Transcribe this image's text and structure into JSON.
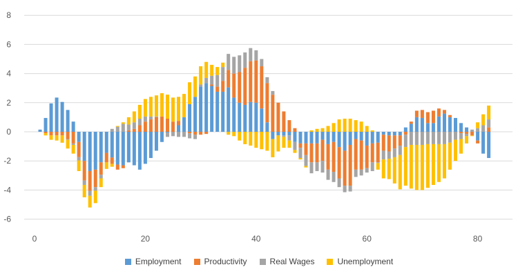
{
  "chart_data": {
    "type": "bar",
    "stacked": true,
    "title": "",
    "xlabel": "",
    "ylabel": "",
    "xlim": [
      0,
      82
    ],
    "ylim": [
      -7,
      8
    ],
    "x_ticks": [
      0,
      20,
      40,
      60,
      80
    ],
    "y_ticks": [
      -6,
      -4,
      -2,
      0,
      2,
      4,
      6,
      8
    ],
    "grid": true,
    "legend_position": "bottom",
    "x": [
      1,
      2,
      3,
      4,
      5,
      6,
      7,
      8,
      9,
      10,
      11,
      12,
      13,
      14,
      15,
      16,
      17,
      18,
      19,
      20,
      21,
      22,
      23,
      24,
      25,
      26,
      27,
      28,
      29,
      30,
      31,
      32,
      33,
      34,
      35,
      36,
      37,
      38,
      39,
      40,
      41,
      42,
      43,
      44,
      45,
      46,
      47,
      48,
      49,
      50,
      51,
      52,
      53,
      54,
      55,
      56,
      57,
      58,
      59,
      60,
      61,
      62,
      63,
      64,
      65,
      66,
      67,
      68,
      69,
      70,
      71,
      72,
      73,
      74,
      75,
      76,
      77,
      78,
      79,
      80,
      81,
      82
    ],
    "series": [
      {
        "name": "Employment",
        "color": "#5b9bd5",
        "values": [
          0.15,
          0.95,
          1.95,
          2.35,
          2.05,
          1.5,
          0.7,
          -0.7,
          -2,
          -2.7,
          -2.6,
          -2.1,
          -1.45,
          -1.77,
          -2.25,
          -2.3,
          -2.1,
          -2.3,
          -2.6,
          -2.2,
          -1.8,
          -1.3,
          -0.7,
          -0.05,
          0,
          0.45,
          1.0,
          1.9,
          2.4,
          3.1,
          3.35,
          3.15,
          2.75,
          2.75,
          3.05,
          2.35,
          2.0,
          1.85,
          2.05,
          2.0,
          1.6,
          0.65,
          -0.5,
          -0.25,
          -0.25,
          -0.25,
          -0.7,
          -0.8,
          -0.8,
          -0.8,
          -0.8,
          -0.55,
          -0.85,
          -0.7,
          -1.05,
          -1.3,
          -0.9,
          -0.5,
          -0.6,
          -0.95,
          -0.8,
          -0.75,
          -0.2,
          -0.25,
          -0.25,
          -0.25,
          0.3,
          0.55,
          1.0,
          0.95,
          0.6,
          0.6,
          1.05,
          1.25,
          1.0,
          0.95,
          0.6,
          0.3,
          0,
          -0.6,
          -1.5,
          -1.8
        ]
      },
      {
        "name": "Productivity",
        "color": "#ed7d31",
        "values": [
          0,
          -0.1,
          -0.25,
          -0.25,
          -0.25,
          -0.5,
          -0.8,
          -1.04,
          -1.35,
          -1.35,
          -1.2,
          -0.85,
          -0.65,
          -0.43,
          -0.35,
          -0.2,
          0.1,
          0.2,
          0.45,
          0.7,
          0.85,
          1.0,
          1.05,
          0.9,
          0.7,
          0.3,
          0,
          -0.1,
          -0.2,
          -0.2,
          -0.15,
          0.1,
          0.35,
          0.75,
          1.2,
          1.65,
          2.1,
          2.55,
          2.8,
          2.9,
          2.9,
          2.7,
          2.55,
          2.0,
          1.4,
          0.8,
          0.25,
          -0.3,
          -0.8,
          -1.3,
          -1.3,
          -1.45,
          -1.75,
          -2.05,
          -2.15,
          -2.4,
          -2.8,
          -2.1,
          -2.0,
          -1.55,
          -1.3,
          -1.35,
          -1.1,
          -1.1,
          -0.9,
          -0.7,
          -0.2,
          0.15,
          0.45,
          0.55,
          0.75,
          0.85,
          0.55,
          0.25,
          0.15,
          0,
          -0.1,
          -0.15,
          -0.25,
          -0.2,
          0,
          0.3
        ]
      },
      {
        "name": "Real Wages",
        "color": "#a5a5a5",
        "values": [
          0,
          0,
          0,
          0,
          0,
          -0.05,
          -0.1,
          -0.23,
          -0.3,
          -0.35,
          -0.25,
          -0.25,
          0,
          0.2,
          0.35,
          0.55,
          0.4,
          0.45,
          0.45,
          0.35,
          0.2,
          0.05,
          0,
          -0.3,
          -0.3,
          -0.35,
          -0.35,
          -0.35,
          -0.3,
          0.15,
          0.35,
          0.6,
          0.8,
          0.95,
          1.1,
          1.15,
          1.15,
          1.05,
          0.9,
          0.7,
          0.5,
          0.4,
          0.25,
          0,
          -0.1,
          -0.35,
          -0.55,
          -0.7,
          -0.75,
          -0.75,
          -0.6,
          -0.8,
          -0.7,
          -0.7,
          -0.6,
          -0.45,
          -0.4,
          -0.5,
          -0.4,
          -0.3,
          -0.6,
          -0.05,
          -0.6,
          -0.5,
          -0.6,
          -0.65,
          -0.85,
          -0.9,
          -0.9,
          -0.9,
          -0.85,
          -0.85,
          -0.85,
          -0.85,
          -0.75,
          -0.55,
          -0.4,
          -0.15,
          0.15,
          0.25,
          0.45,
          0.55
        ]
      },
      {
        "name": "Unemployment",
        "color": "#ffc000",
        "values": [
          0,
          -0.15,
          -0.3,
          -0.35,
          -0.5,
          -0.6,
          -0.6,
          -0.73,
          -0.85,
          -0.8,
          -0.85,
          -0.6,
          -0.45,
          -0.2,
          0.05,
          0.1,
          0.5,
          0.75,
          0.95,
          1.2,
          1.35,
          1.45,
          1.6,
          1.65,
          1.65,
          1.65,
          1.6,
          1.5,
          1.4,
          1.25,
          1.1,
          0.75,
          0.55,
          0.3,
          -0.2,
          -0.3,
          -0.6,
          -0.85,
          -0.95,
          -1.1,
          -1.2,
          -1.3,
          -1.25,
          -1.1,
          -0.75,
          -0.5,
          -0.2,
          -0.1,
          -0.1,
          0.1,
          0.2,
          0.25,
          0.4,
          0.6,
          0.85,
          0.9,
          0.9,
          0.8,
          0.7,
          0.4,
          0.1,
          -0.45,
          -1.3,
          -1.4,
          -1.8,
          -2.35,
          -2.65,
          -3.0,
          -3.1,
          -3.1,
          -3.0,
          -2.8,
          -2.6,
          -2.35,
          -1.85,
          -1.45,
          -1.0,
          -0.5,
          -0.05,
          0.4,
          0.75,
          0.95
        ]
      }
    ]
  }
}
